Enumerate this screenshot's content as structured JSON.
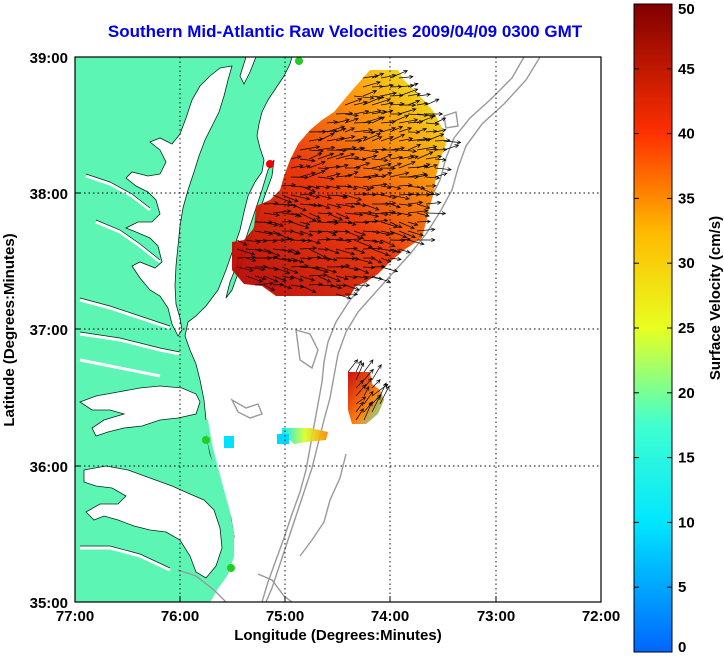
{
  "title": "Southern Mid-Atlantic Raw Velocities 2009/04/09 0300 GMT",
  "xlabel": "Longitude (Degrees:Minutes)",
  "ylabel": "Latitude (Degrees:Minutes)",
  "x_ticks": [
    "77:00",
    "76:00",
    "75:00",
    "74:00",
    "73:00",
    "72:00"
  ],
  "y_ticks": [
    "39:00",
    "38:00",
    "37:00",
    "36:00",
    "35:00"
  ],
  "colorbar": {
    "label": "Surface Velocity (cm/s)",
    "ticks": [
      "50",
      "45",
      "40",
      "35",
      "30",
      "25",
      "20",
      "15",
      "10",
      "5",
      "0"
    ],
    "min": 0,
    "max": 50,
    "colormap": "jet"
  },
  "colors": {
    "title": "#0000ee",
    "land": "#5cf5b4",
    "bathymetry": "#999999",
    "station_green": "#22cc22",
    "station_red": "#ee0000"
  },
  "map_extent": {
    "lon": [
      -77,
      -72
    ],
    "lat": [
      35,
      39
    ]
  },
  "grid": true
}
